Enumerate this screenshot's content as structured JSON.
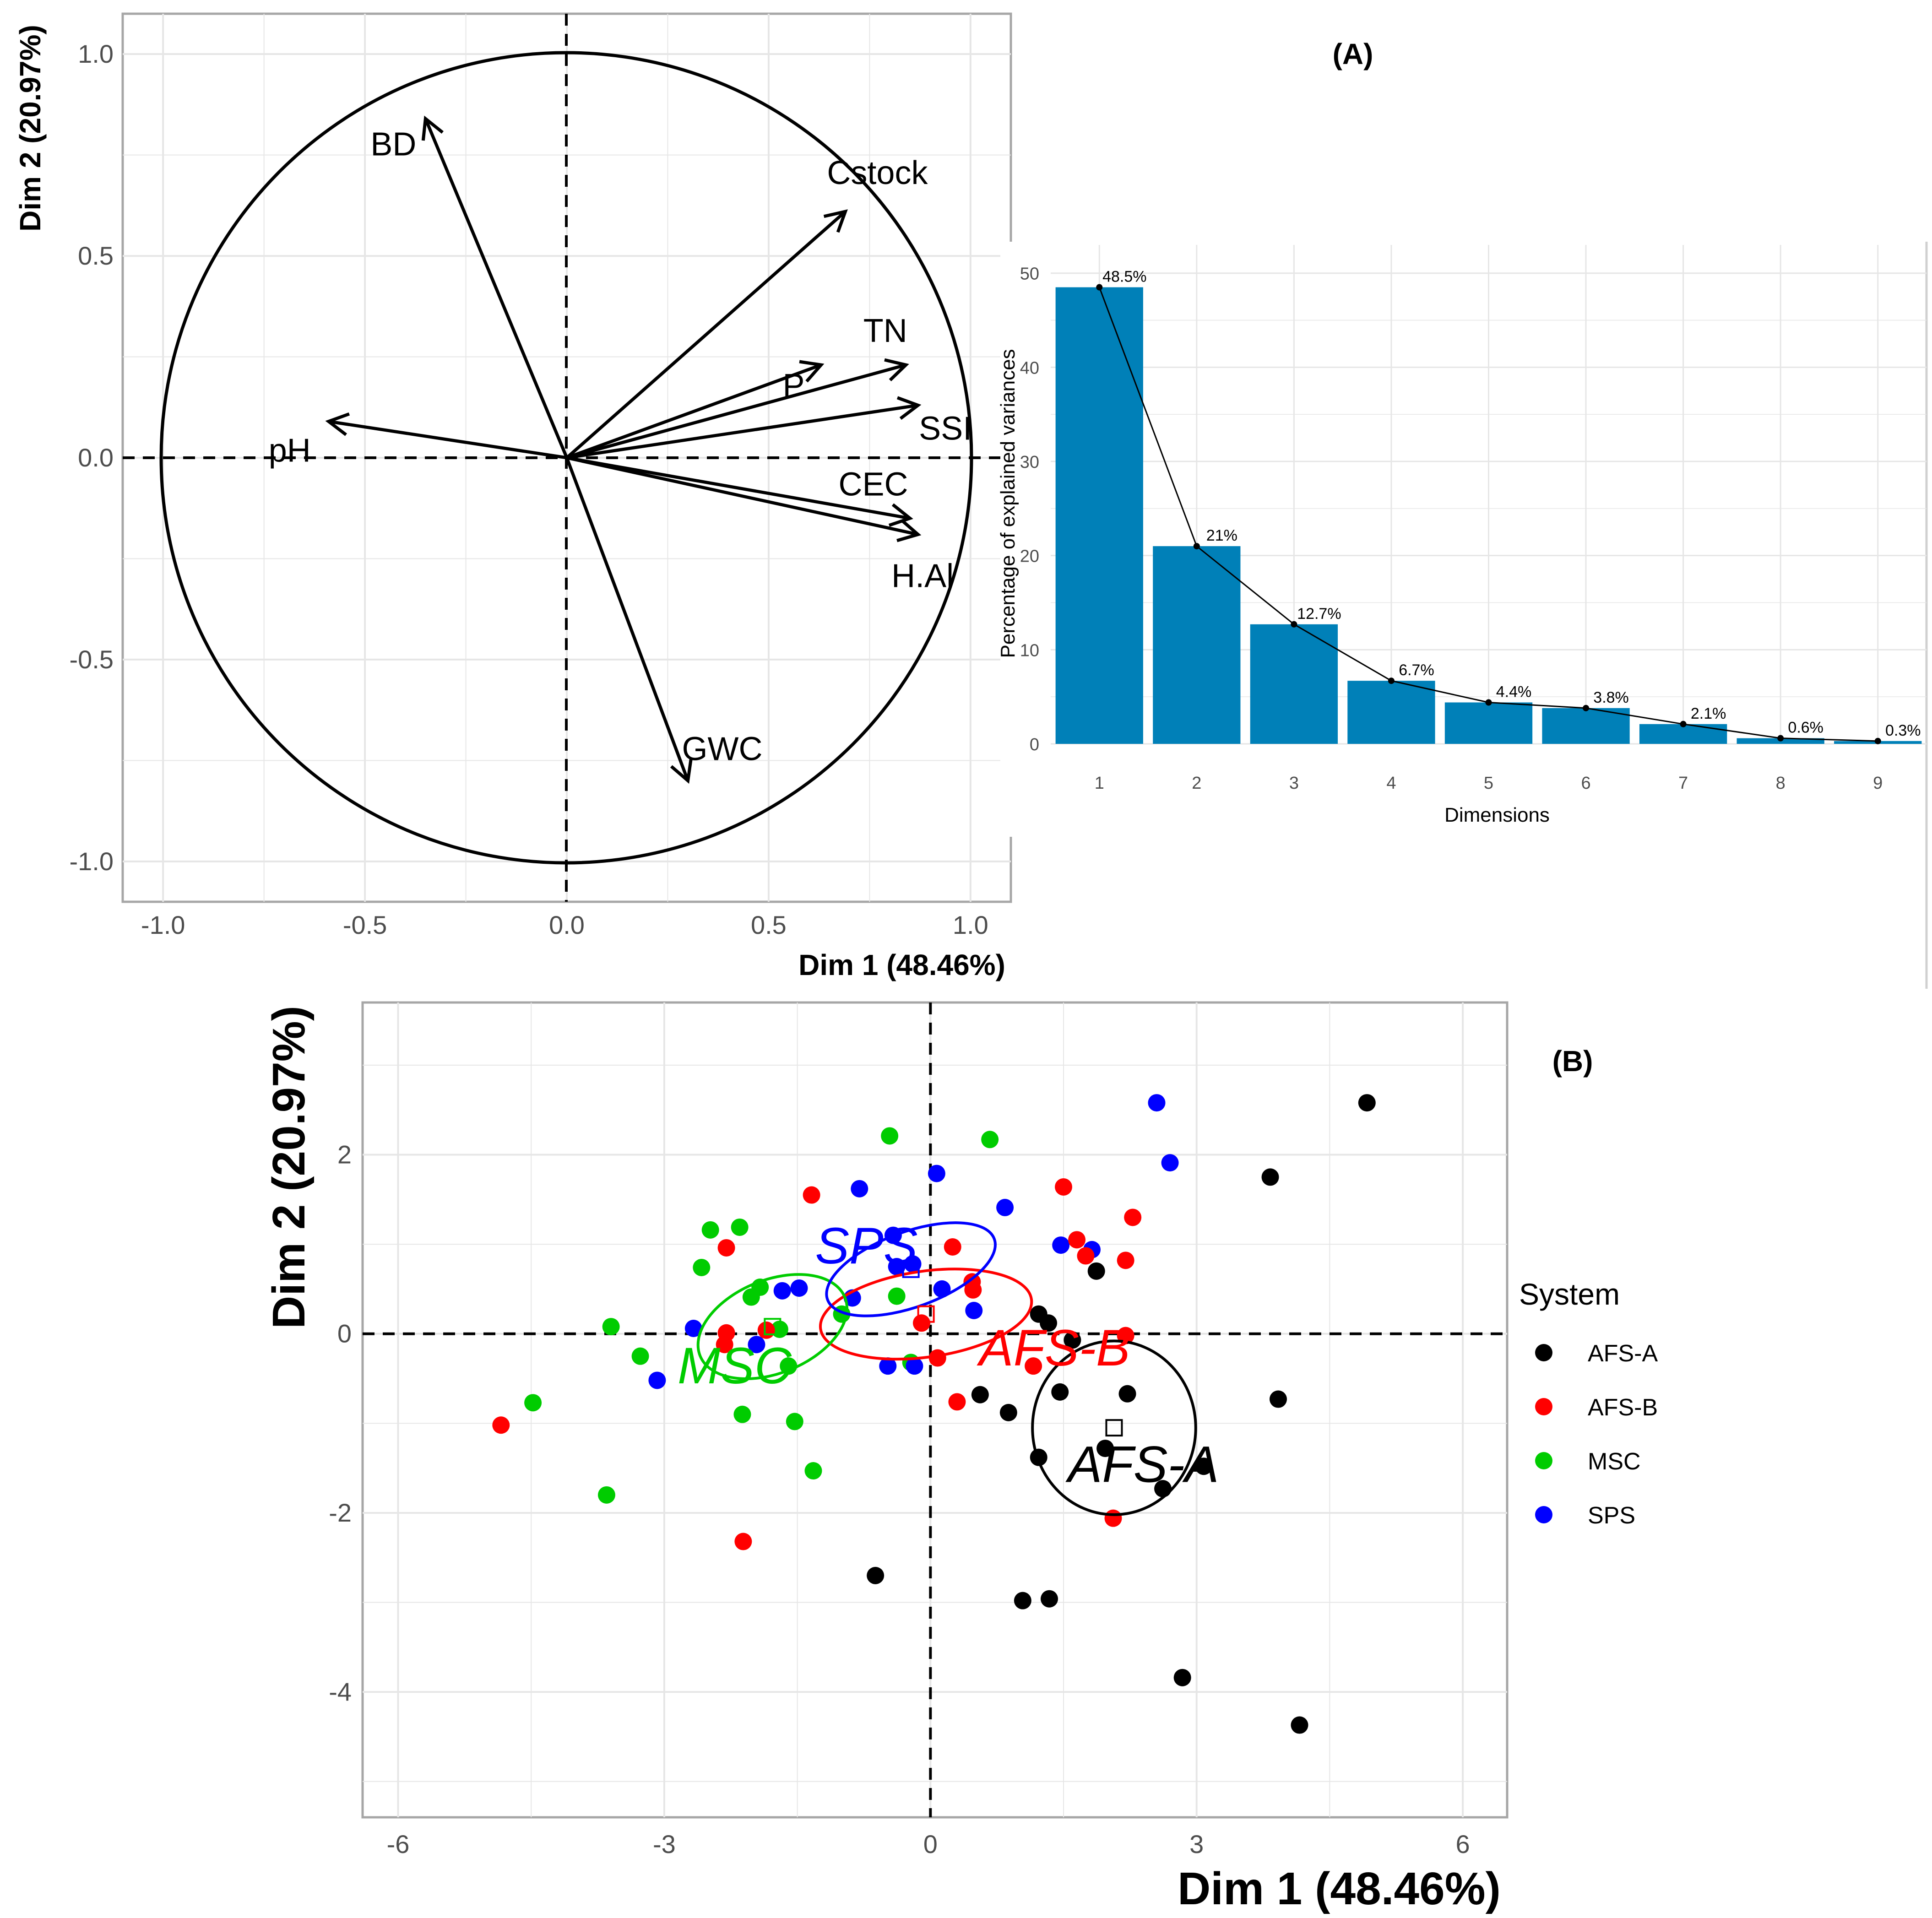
{
  "colors": {
    "bar": "#0080b8",
    "grid": "#e6e6e6",
    "afs_a": "#000000",
    "afs_b": "#ff0000",
    "msc": "#00cc00",
    "sps": "#0000ff"
  },
  "chart_data": [
    {
      "id": "correlation-circle",
      "type": "scatter",
      "title": "",
      "xlabel": "Dim 1 (48.46%)",
      "ylabel": "Dim 2 (20.97%)",
      "xlim": [
        -1.1,
        1.1
      ],
      "ylim": [
        -1.1,
        1.1
      ],
      "xticks": [
        -1.0,
        -0.5,
        0.0,
        0.5,
        1.0
      ],
      "yticks": [
        -1.0,
        -0.5,
        0.0,
        0.5,
        1.0
      ],
      "xtick_labels": [
        "-1.0",
        "-0.5",
        "0.0",
        "0.5",
        "1.0"
      ],
      "ytick_labels": [
        "-1.0",
        "-0.5",
        "0.0",
        "0.5",
        "1.0"
      ],
      "vectors": [
        {
          "name": "BD",
          "x": -0.35,
          "y": 0.84
        },
        {
          "name": "Cstock",
          "x": 0.69,
          "y": 0.61
        },
        {
          "name": "TN",
          "x": 0.84,
          "y": 0.23
        },
        {
          "name": "P",
          "x": 0.63,
          "y": 0.23
        },
        {
          "name": "SSI",
          "x": 0.87,
          "y": 0.13
        },
        {
          "name": "pH",
          "x": -0.59,
          "y": 0.09
        },
        {
          "name": "CEC",
          "x": 0.85,
          "y": -0.15
        },
        {
          "name": "H.Al",
          "x": 0.87,
          "y": -0.19
        },
        {
          "name": "GWC",
          "x": 0.3,
          "y": -0.8
        }
      ]
    },
    {
      "id": "scree",
      "panel_label": "(A)",
      "type": "bar",
      "xlabel": "Dimensions",
      "ylabel": "Percentage of explained variances",
      "categories": [
        "1",
        "2",
        "3",
        "4",
        "5",
        "6",
        "7",
        "8",
        "9"
      ],
      "values": [
        48.5,
        21.0,
        12.7,
        6.7,
        4.4,
        3.8,
        2.1,
        0.6,
        0.3
      ],
      "value_labels": [
        "48.5%",
        "21%",
        "12.7%",
        "6.7%",
        "4.4%",
        "3.8%",
        "2.1%",
        "0.6%",
        "0.3%"
      ],
      "ylim": [
        0,
        53
      ],
      "yticks": [
        0,
        10,
        20,
        30,
        40,
        50
      ],
      "ytick_labels": [
        "0",
        "10",
        "20",
        "30",
        "40",
        "50"
      ]
    },
    {
      "id": "individuals",
      "panel_label": "(B)",
      "type": "scatter",
      "xlabel": "Dim 1 (48.46%)",
      "ylabel": "Dim 2 (20.97%)",
      "xlim": [
        -6.4,
        6.5
      ],
      "ylim": [
        -5.4,
        3.7
      ],
      "xticks": [
        -6,
        -3,
        0,
        3,
        6
      ],
      "yticks": [
        -4,
        -2,
        0,
        2
      ],
      "xtick_labels": [
        "-6",
        "-3",
        "0",
        "3",
        "6"
      ],
      "ytick_labels": [
        "-4",
        "-2",
        "0",
        "2"
      ],
      "legend_title": "System",
      "legend_position": "right",
      "series": [
        {
          "name": "AFS-A",
          "center": [
            2.07,
            -1.05
          ],
          "ellipse": {
            "rx": 0.92,
            "ry": 0.97,
            "angle_deg": 0
          },
          "label_at": [
            1.55,
            -1.45
          ],
          "points": [
            [
              4.92,
              2.58
            ],
            [
              3.83,
              1.75
            ],
            [
              3.92,
              -0.73
            ],
            [
              1.87,
              0.7
            ],
            [
              1.22,
              0.22
            ],
            [
              1.33,
              0.12
            ],
            [
              1.6,
              -0.07
            ],
            [
              0.56,
              -0.68
            ],
            [
              0.88,
              -0.88
            ],
            [
              1.46,
              -0.65
            ],
            [
              2.22,
              -0.67
            ],
            [
              1.22,
              -1.38
            ],
            [
              1.97,
              -1.28
            ],
            [
              3.08,
              -1.48
            ],
            [
              2.62,
              -1.73
            ],
            [
              -0.62,
              -2.7
            ],
            [
              1.04,
              -2.98
            ],
            [
              1.34,
              -2.96
            ],
            [
              2.84,
              -3.84
            ],
            [
              4.16,
              -4.37
            ]
          ]
        },
        {
          "name": "AFS-B",
          "center": [
            -0.05,
            0.22
          ],
          "ellipse": {
            "rx": 1.2,
            "ry": 0.48,
            "angle_deg": -8
          },
          "label_at": [
            0.55,
            -0.15
          ],
          "points": [
            [
              -4.84,
              -1.02
            ],
            [
              -2.3,
              0.01
            ],
            [
              -2.32,
              -0.12
            ],
            [
              -1.85,
              0.04
            ],
            [
              -2.3,
              0.96
            ],
            [
              -1.34,
              1.55
            ],
            [
              0.25,
              0.97
            ],
            [
              -0.1,
              0.12
            ],
            [
              0.47,
              0.58
            ],
            [
              0.48,
              0.49
            ],
            [
              0.08,
              -0.27
            ],
            [
              0.3,
              -0.76
            ],
            [
              1.16,
              -0.36
            ],
            [
              1.5,
              1.64
            ],
            [
              1.65,
              1.05
            ],
            [
              1.75,
              0.87
            ],
            [
              2.2,
              0.82
            ],
            [
              2.28,
              1.3
            ],
            [
              2.2,
              -0.02
            ],
            [
              2.06,
              -2.06
            ],
            [
              -2.11,
              -2.32
            ]
          ]
        },
        {
          "name": "MSC",
          "center": [
            -1.78,
            0.08
          ],
          "ellipse": {
            "rx": 0.88,
            "ry": 0.52,
            "angle_deg": -22
          },
          "label_at": [
            -2.85,
            -0.35
          ],
          "points": [
            [
              -4.48,
              -0.77
            ],
            [
              -3.6,
              0.08
            ],
            [
              -3.65,
              -1.8
            ],
            [
              -3.27,
              -0.25
            ],
            [
              -2.58,
              0.74
            ],
            [
              -2.48,
              1.16
            ],
            [
              -2.15,
              1.19
            ],
            [
              -2.02,
              0.41
            ],
            [
              -1.92,
              0.52
            ],
            [
              -1.7,
              0.05
            ],
            [
              -1.6,
              -0.36
            ],
            [
              -1.53,
              -0.98
            ],
            [
              -2.12,
              -0.9
            ],
            [
              -1.32,
              -1.53
            ],
            [
              -1.0,
              0.22
            ],
            [
              -0.46,
              2.21
            ],
            [
              -0.38,
              0.42
            ],
            [
              -0.22,
              -0.32
            ],
            [
              0.67,
              2.17
            ]
          ]
        },
        {
          "name": "SPS",
          "center": [
            -0.22,
            0.72
          ],
          "ellipse": {
            "rx": 1.0,
            "ry": 0.42,
            "angle_deg": -20
          },
          "label_at": [
            -1.3,
            0.99
          ],
          "points": [
            [
              -3.08,
              -0.52
            ],
            [
              -2.67,
              0.06
            ],
            [
              -1.96,
              -0.12
            ],
            [
              -1.67,
              0.48
            ],
            [
              -1.48,
              0.51
            ],
            [
              -0.88,
              0.4
            ],
            [
              -0.8,
              1.62
            ],
            [
              -0.48,
              -0.36
            ],
            [
              -0.42,
              1.1
            ],
            [
              -0.38,
              0.75
            ],
            [
              -0.2,
              0.78
            ],
            [
              0.07,
              1.79
            ],
            [
              0.13,
              0.5
            ],
            [
              0.49,
              0.26
            ],
            [
              0.84,
              1.41
            ],
            [
              1.47,
              0.99
            ],
            [
              1.82,
              0.94
            ],
            [
              -0.18,
              -0.36
            ],
            [
              2.55,
              2.58
            ],
            [
              2.7,
              1.91
            ]
          ]
        }
      ]
    }
  ]
}
